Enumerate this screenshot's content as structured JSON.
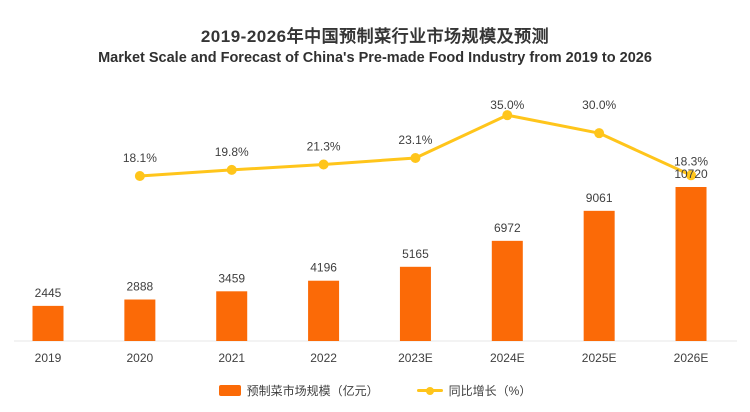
{
  "header": {
    "title": "2019-2026年中国预制菜行业市场规模及预测",
    "subtitle": "Market Scale and Forecast of China's Pre-made Food Industry from 2019 to 2026"
  },
  "colors": {
    "bar": "#FB6A07",
    "line": "#FFC51B",
    "label_text": "#3f3f3f",
    "axis_line": "#e7e7e7",
    "title_text": "#353535"
  },
  "chart_data": {
    "type": "bar",
    "categories": [
      "2019",
      "2020",
      "2021",
      "2022",
      "2023E",
      "2024E",
      "2025E",
      "2026E"
    ],
    "series": [
      {
        "name": "预制菜市场规模（亿元）",
        "type": "bar",
        "color": "#FB6A07",
        "values": [
          2445,
          2888,
          3459,
          4196,
          5165,
          6972,
          9061,
          10720
        ]
      },
      {
        "name": "同比增长（%）",
        "type": "line",
        "color": "#FFC51B",
        "x_categories": [
          "2020",
          "2021",
          "2022",
          "2023E",
          "2024E",
          "2025E",
          "2026E"
        ],
        "values": [
          18.1,
          19.8,
          21.3,
          23.1,
          35.0,
          30.0,
          18.3
        ]
      }
    ],
    "title": "2019-2026年中国预制菜行业市场规模及预测",
    "subtitle": "Market Scale and Forecast of China's Pre-made Food Industry from 2019 to 2026",
    "xlabel": "",
    "ylabel": "",
    "axes": {
      "y_left": "hidden",
      "y_right": "hidden",
      "grid": "off"
    },
    "data_labels": "shown",
    "legend_position": "bottom"
  }
}
